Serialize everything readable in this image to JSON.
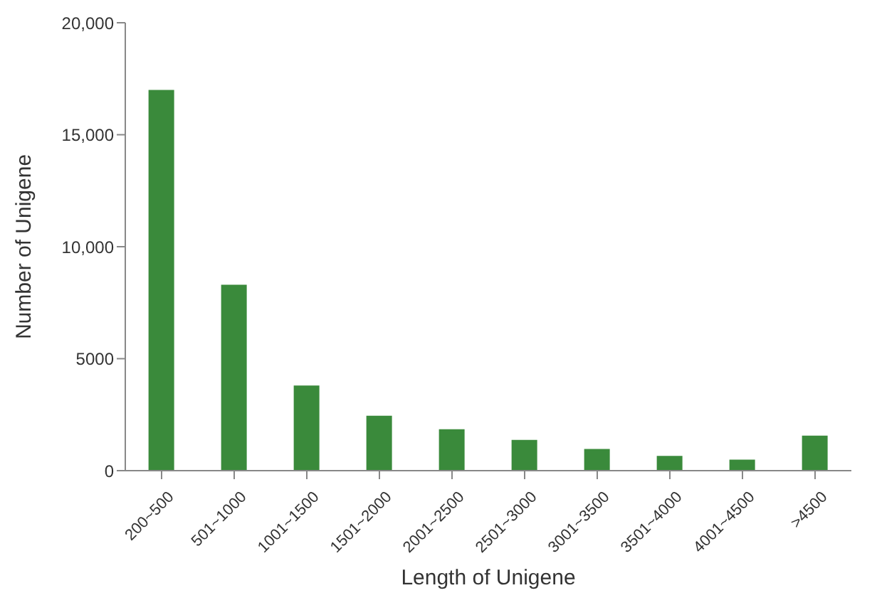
{
  "chart_data": {
    "type": "bar",
    "xlabel": "Length of Unigene",
    "ylabel": "Number of Unigene",
    "categories": [
      "200~500",
      "501~1000",
      "1001~1500",
      "1501~2000",
      "2001~2500",
      "2501~3000",
      "3001~3500",
      "3501~4000",
      "4001~4500",
      ">4500"
    ],
    "values": [
      17000,
      8300,
      3800,
      2450,
      1850,
      1370,
      970,
      660,
      490,
      1560
    ],
    "color": "#3a8a3b",
    "ylim": [
      0,
      20000
    ],
    "yticks": [
      0,
      5000,
      {
        "value": 10000,
        "label": "10,000"
      },
      {
        "value": 15000,
        "label": "15,000"
      },
      {
        "value": 20000,
        "label": "20,000"
      }
    ],
    "grid": false
  }
}
